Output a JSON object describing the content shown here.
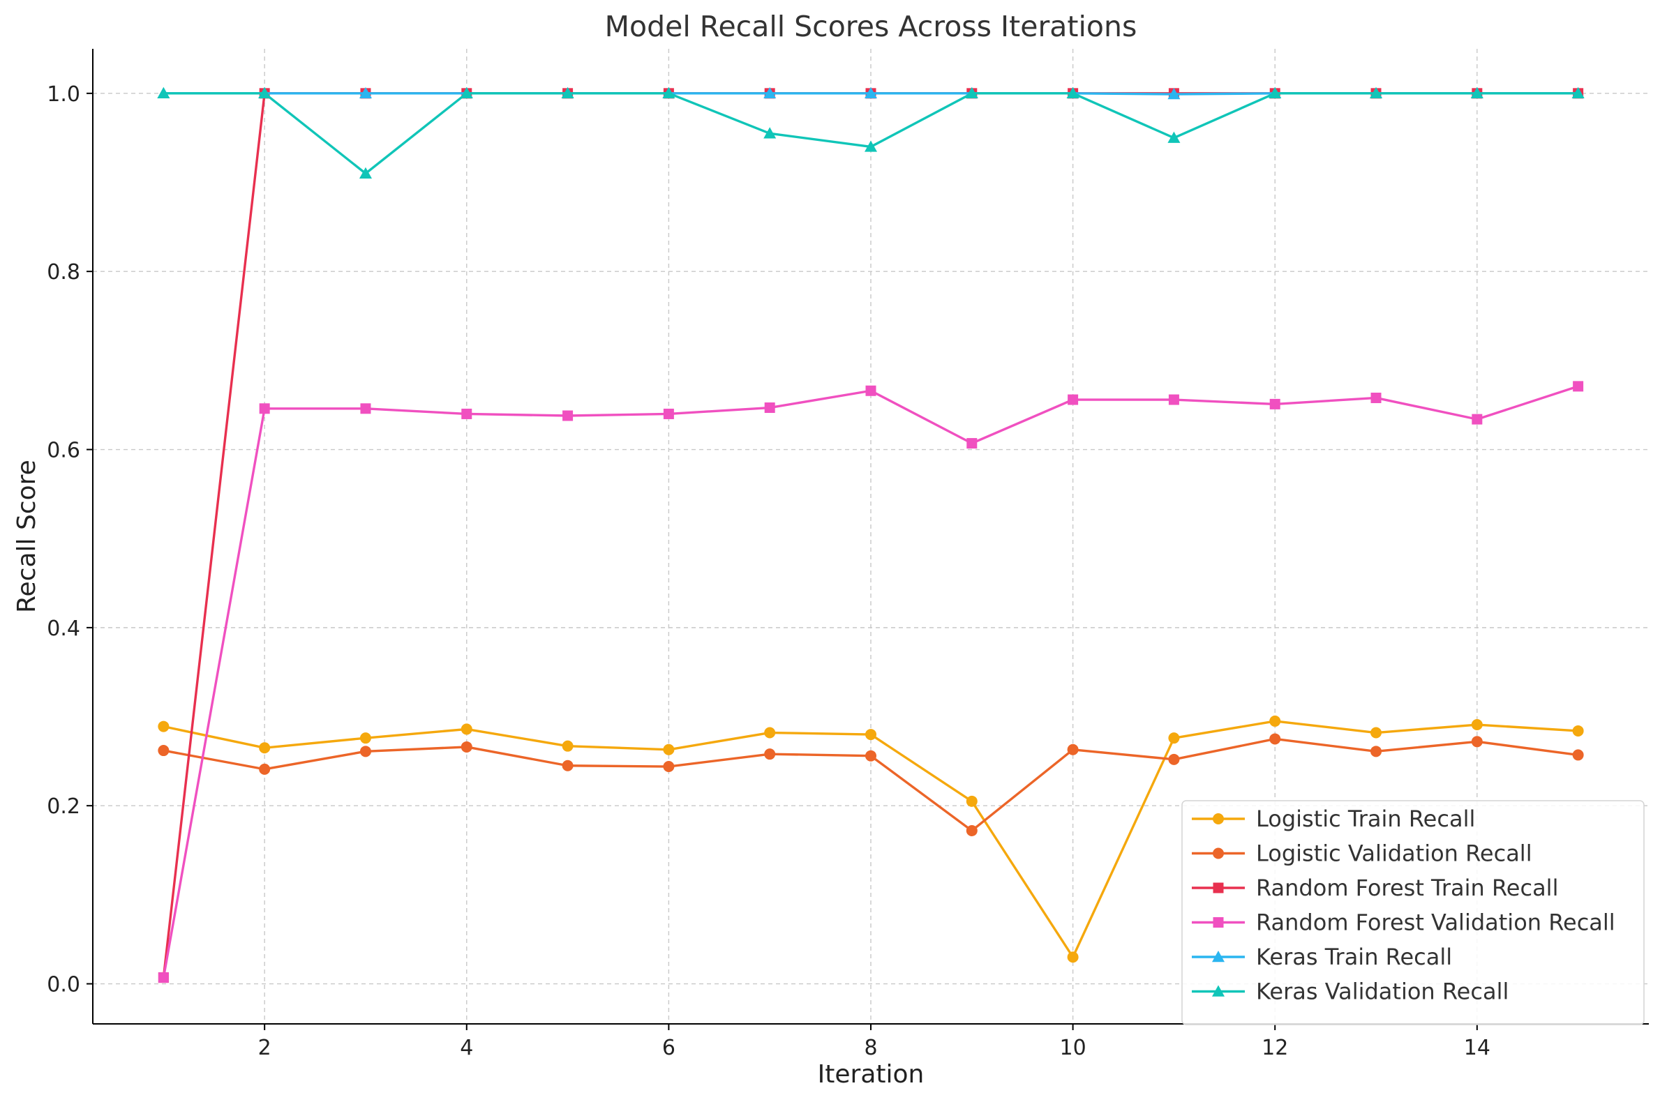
{
  "chart_data": {
    "type": "line",
    "title": "Model Recall Scores Across Iterations",
    "xlabel": "Iteration",
    "ylabel": "Recall Score",
    "xlim": [
      0.3,
      15.7
    ],
    "ylim": [
      -0.045,
      1.05
    ],
    "xticks": [
      2,
      4,
      6,
      8,
      10,
      12,
      14
    ],
    "xtick_labels": [
      "2",
      "4",
      "6",
      "8",
      "10",
      "12",
      "14"
    ],
    "yticks": [
      0.0,
      0.2,
      0.4,
      0.6,
      0.8,
      1.0
    ],
    "ytick_labels": [
      "0.0",
      "0.2",
      "0.4",
      "0.6",
      "0.8",
      "1.0"
    ],
    "grid": true,
    "legend_position": "lower-right",
    "x": [
      1,
      2,
      3,
      4,
      5,
      6,
      7,
      8,
      9,
      10,
      11,
      12,
      13,
      14,
      15
    ],
    "series": [
      {
        "name": "Logistic Train Recall",
        "color": "#F5A80D",
        "marker": "circle",
        "values": [
          0.289,
          0.265,
          0.276,
          0.286,
          0.267,
          0.263,
          0.282,
          0.28,
          0.205,
          0.03,
          0.276,
          0.295,
          0.282,
          0.291,
          0.284
        ]
      },
      {
        "name": "Logistic Validation Recall",
        "color": "#EC6528",
        "marker": "circle",
        "values": [
          0.262,
          0.241,
          0.261,
          0.266,
          0.245,
          0.244,
          0.258,
          0.256,
          0.172,
          0.263,
          0.252,
          0.275,
          0.261,
          0.272,
          0.257
        ]
      },
      {
        "name": "Random Forest Train Recall",
        "color": "#E8304F",
        "marker": "square",
        "values": [
          0.007,
          1.0,
          1.0,
          1.0,
          1.0,
          1.0,
          1.0,
          1.0,
          1.0,
          1.0,
          1.0,
          1.0,
          1.0,
          1.0,
          1.0
        ]
      },
      {
        "name": "Random Forest Validation Recall",
        "color": "#F050C0",
        "marker": "square",
        "values": [
          0.007,
          0.646,
          0.646,
          0.64,
          0.638,
          0.64,
          0.647,
          0.666,
          0.607,
          0.656,
          0.656,
          0.651,
          0.658,
          0.634,
          0.671
        ]
      },
      {
        "name": "Keras Train Recall",
        "color": "#2AB5F0",
        "marker": "triangle",
        "values": [
          1.0,
          1.0,
          1.0,
          1.0,
          1.0,
          1.0,
          1.0,
          1.0,
          1.0,
          1.0,
          0.999,
          1.0,
          1.0,
          1.0,
          1.0
        ]
      },
      {
        "name": "Keras Validation Recall",
        "color": "#10C5B8",
        "marker": "triangle",
        "values": [
          1.0,
          1.0,
          0.91,
          1.0,
          1.0,
          1.0,
          0.955,
          0.94,
          1.0,
          1.0,
          0.95,
          1.0,
          1.0,
          1.0,
          1.0
        ]
      }
    ]
  }
}
